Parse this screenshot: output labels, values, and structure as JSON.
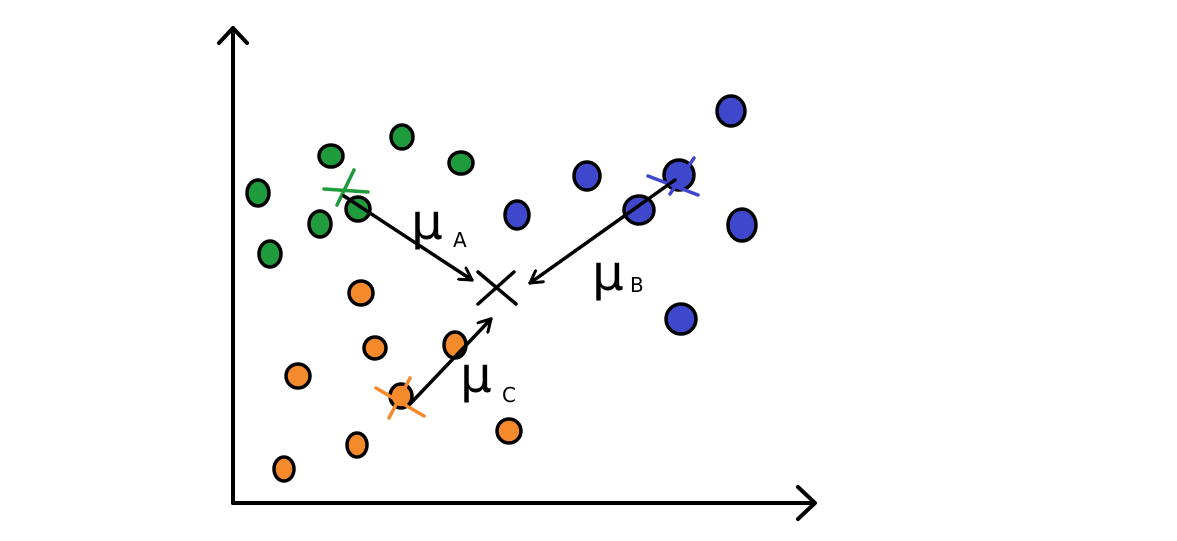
{
  "colors": {
    "cluster_a": "#1f9a3c",
    "cluster_b": "#3f48cc",
    "cluster_c": "#f58a2c",
    "stroke": "#000000",
    "background": "#ffffff"
  },
  "labels": {
    "mu_a": {
      "symbol": "μ",
      "subscript": "A"
    },
    "mu_b": {
      "symbol": "μ",
      "subscript": "B"
    },
    "mu_c": {
      "symbol": "μ",
      "subscript": "C"
    }
  },
  "clusters": [
    {
      "id": "a",
      "color_key": "cluster_a",
      "point_count": 8
    },
    {
      "id": "b",
      "color_key": "cluster_b",
      "point_count": 8
    },
    {
      "id": "c",
      "color_key": "cluster_c",
      "point_count": 9
    }
  ],
  "icons": {
    "global_centroid": "x-mark-icon",
    "cluster_centroid": "cross-mark-icon"
  }
}
